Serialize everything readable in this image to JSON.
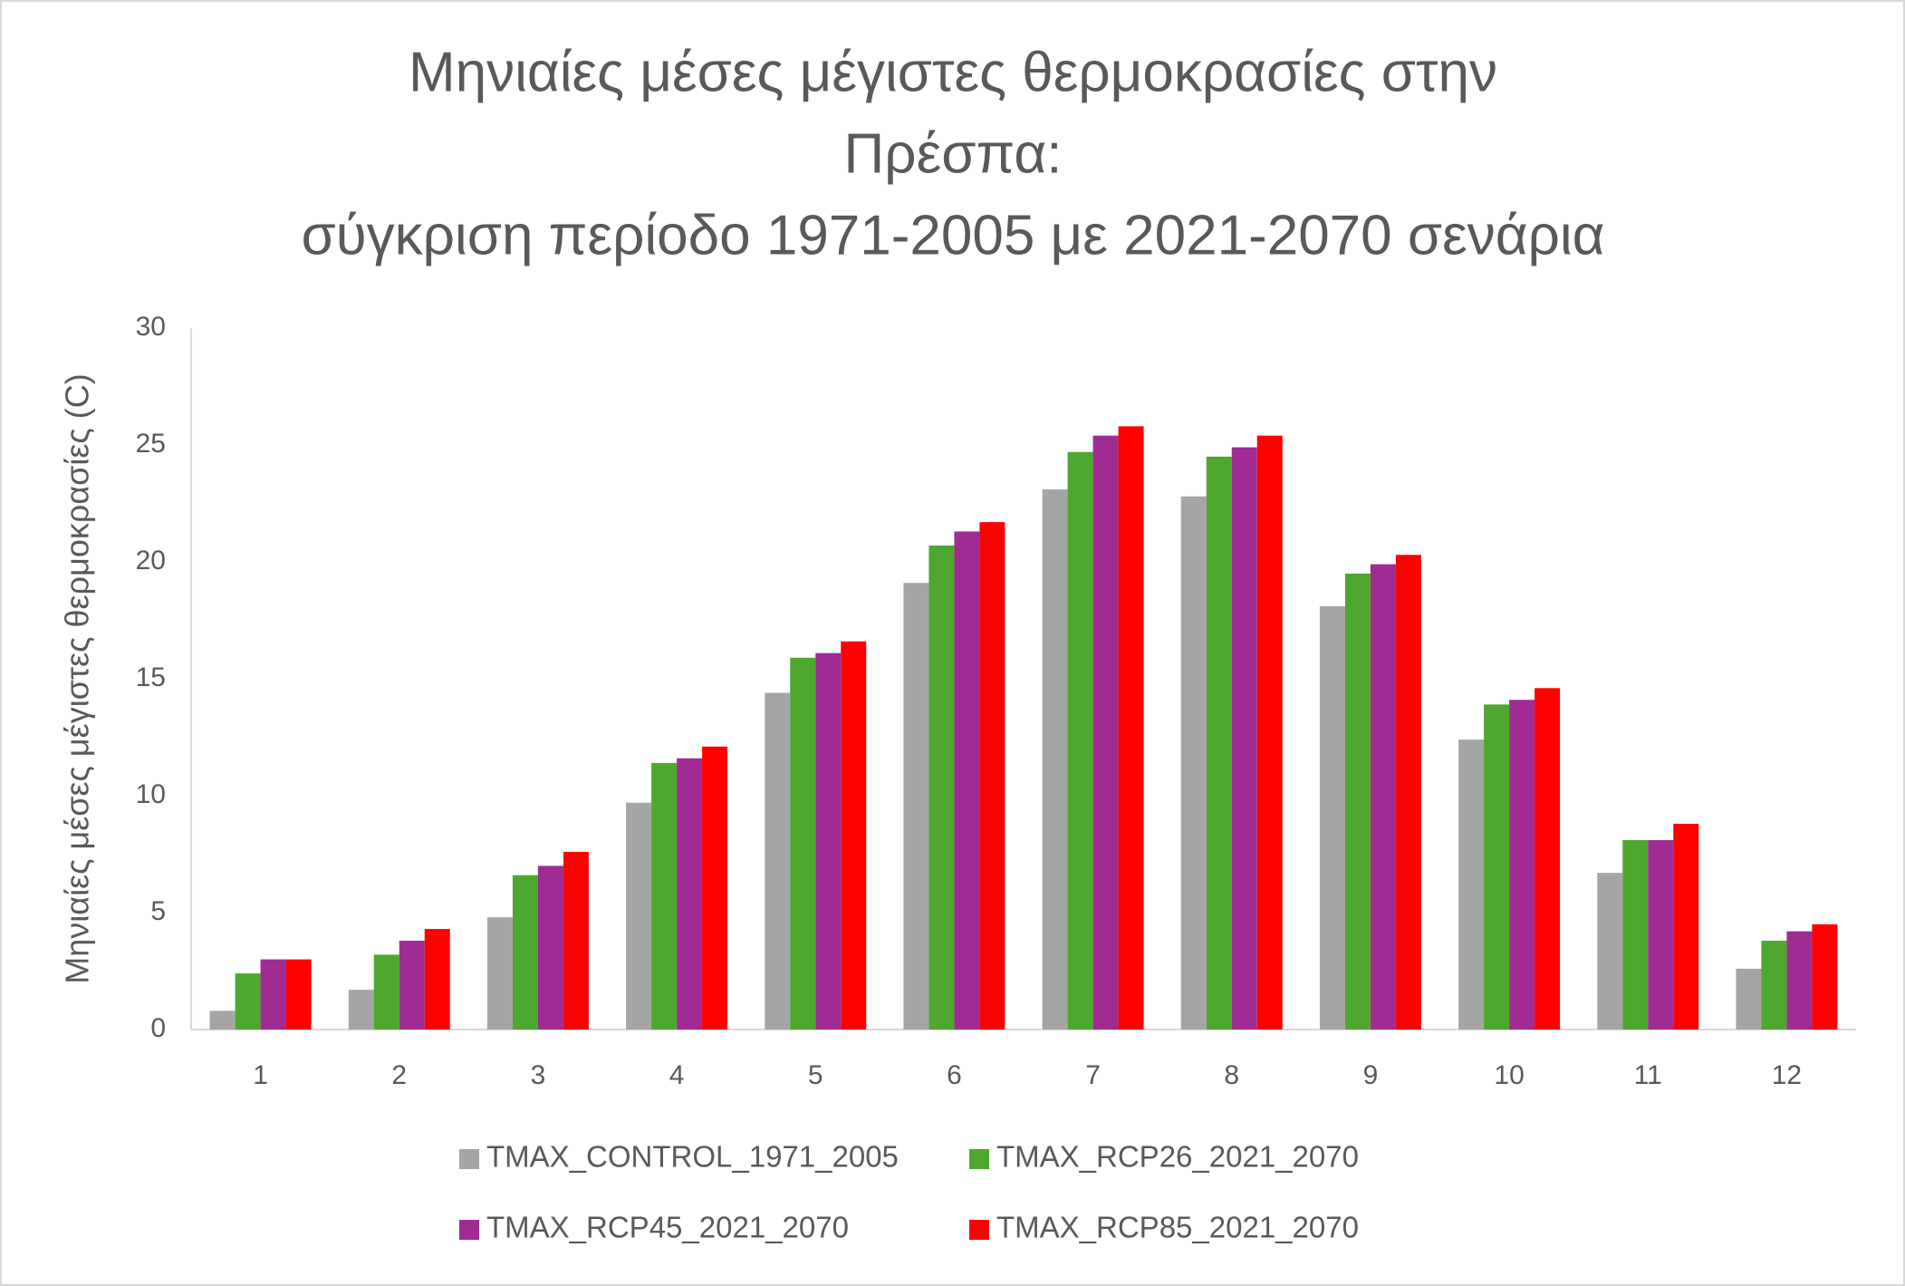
{
  "chart_data": {
    "type": "bar",
    "title": [
      "Μηνιαίες μέσες μέγιστες θερμοκρασίες στην",
      "Πρέσπα:",
      "σύγκριση περίοδο 1971-2005 με 2021-2070 σενάρια"
    ],
    "y_label": "Μηνιαίες μέσες μέγιστες θερμοκρασίες (C)",
    "categories": [
      "1",
      "2",
      "3",
      "4",
      "5",
      "6",
      "7",
      "8",
      "9",
      "10",
      "11",
      "12"
    ],
    "series": [
      {
        "name": "TMAX_CONTROL_1971_2005",
        "color": "#a5a5a5",
        "values": [
          0.8,
          1.7,
          4.8,
          9.7,
          14.4,
          19.1,
          23.1,
          22.8,
          18.1,
          12.4,
          6.7,
          2.6
        ]
      },
      {
        "name": "TMAX_RCP26_2021_2070",
        "color": "#4ea72e",
        "values": [
          2.4,
          3.2,
          6.6,
          11.4,
          15.9,
          20.7,
          24.7,
          24.5,
          19.5,
          13.9,
          8.1,
          3.8
        ]
      },
      {
        "name": "TMAX_RCP45_2021_2070",
        "color": "#a02b93",
        "values": [
          3.0,
          3.8,
          7.0,
          11.6,
          16.1,
          21.3,
          25.4,
          24.9,
          19.9,
          14.1,
          8.1,
          4.2
        ]
      },
      {
        "name": "TMAX_RCP85_2021_2070",
        "color": "#ff0000",
        "values": [
          3.0,
          4.3,
          7.6,
          12.1,
          16.6,
          21.7,
          25.8,
          25.4,
          20.3,
          14.6,
          8.8,
          4.5
        ]
      }
    ],
    "ylim": [
      0,
      30
    ],
    "yticks": [
      0,
      5,
      10,
      15,
      20,
      25,
      30
    ],
    "grid": false,
    "legend": "bottom"
  }
}
